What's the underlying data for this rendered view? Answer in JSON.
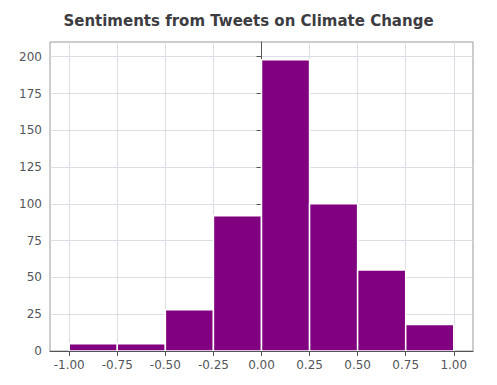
{
  "chart_data": {
    "type": "histogram",
    "title": "Sentiments from Tweets on Climate Change",
    "bins": [
      -1.0,
      -0.75,
      -0.5,
      -0.25,
      0.0,
      0.25,
      0.5,
      0.75,
      1.0
    ],
    "values": [
      5,
      5,
      28,
      92,
      198,
      100,
      55,
      18
    ],
    "color": "#800080",
    "xlim": [
      -1.1,
      1.1
    ],
    "xticks": [
      {
        "value": -1.0,
        "label": "-1.00"
      },
      {
        "value": -0.75,
        "label": "-0.75"
      },
      {
        "value": -0.5,
        "label": "-0.50"
      },
      {
        "value": -0.25,
        "label": "-0.25"
      },
      {
        "value": 0.0,
        "label": "0.00"
      },
      {
        "value": 0.25,
        "label": "0.25"
      },
      {
        "value": 0.5,
        "label": "0.50"
      },
      {
        "value": 0.75,
        "label": "0.75"
      },
      {
        "value": 1.0,
        "label": "1.00"
      }
    ],
    "ylim": [
      0,
      210
    ],
    "yticks": [
      0,
      25,
      50,
      75,
      100,
      125,
      150,
      175,
      200
    ],
    "grid": true
  }
}
